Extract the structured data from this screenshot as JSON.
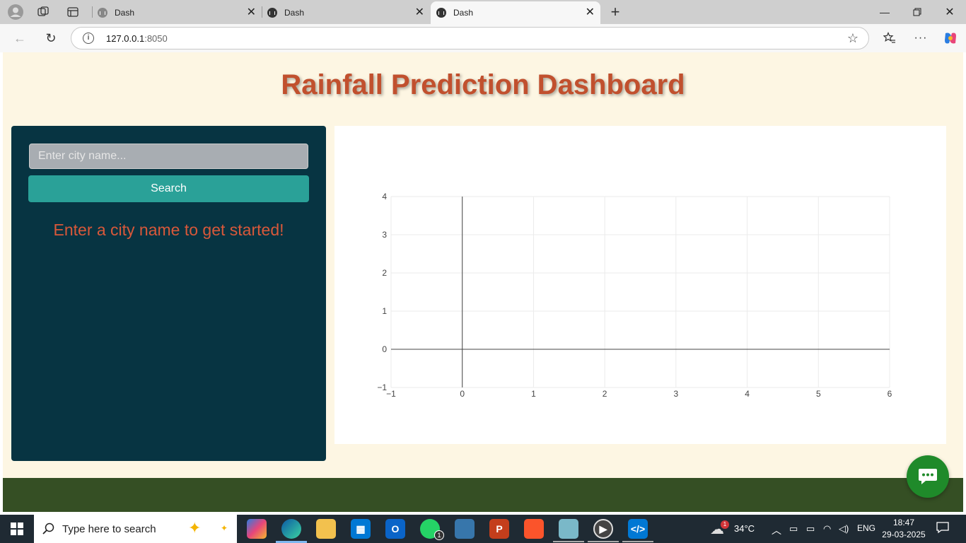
{
  "browser": {
    "tabs": [
      {
        "label": "Dash"
      },
      {
        "label": "Dash"
      },
      {
        "label": "Dash"
      }
    ],
    "url_host": "127.0.0.1",
    "url_port": ":8050"
  },
  "page": {
    "title": "Rainfall Prediction Dashboard",
    "search": {
      "placeholder": "Enter city name...",
      "value": "",
      "button_label": "Search"
    },
    "message": "Enter a city name to get started!"
  },
  "chart_data": {
    "type": "line",
    "x": [],
    "y": [],
    "xlim": [
      -1,
      6
    ],
    "ylim": [
      -1,
      4
    ],
    "xticks": [
      "−1",
      "0",
      "1",
      "2",
      "3",
      "4",
      "5",
      "6"
    ],
    "yticks": [
      "−1",
      "0",
      "1",
      "2",
      "3",
      "4"
    ],
    "grid": true
  },
  "taskbar": {
    "search_placeholder": "Type here to search",
    "weather": "34°C",
    "language": "ENG",
    "time": "18:47",
    "date": "29-03-2025",
    "notification_badge": "1",
    "whatsapp_badge": "1"
  },
  "colors": {
    "title": "#c1502e",
    "panel": "#073442",
    "button": "#2aa198",
    "footer": "#354f24",
    "page_bg": "#fdf6e3"
  }
}
